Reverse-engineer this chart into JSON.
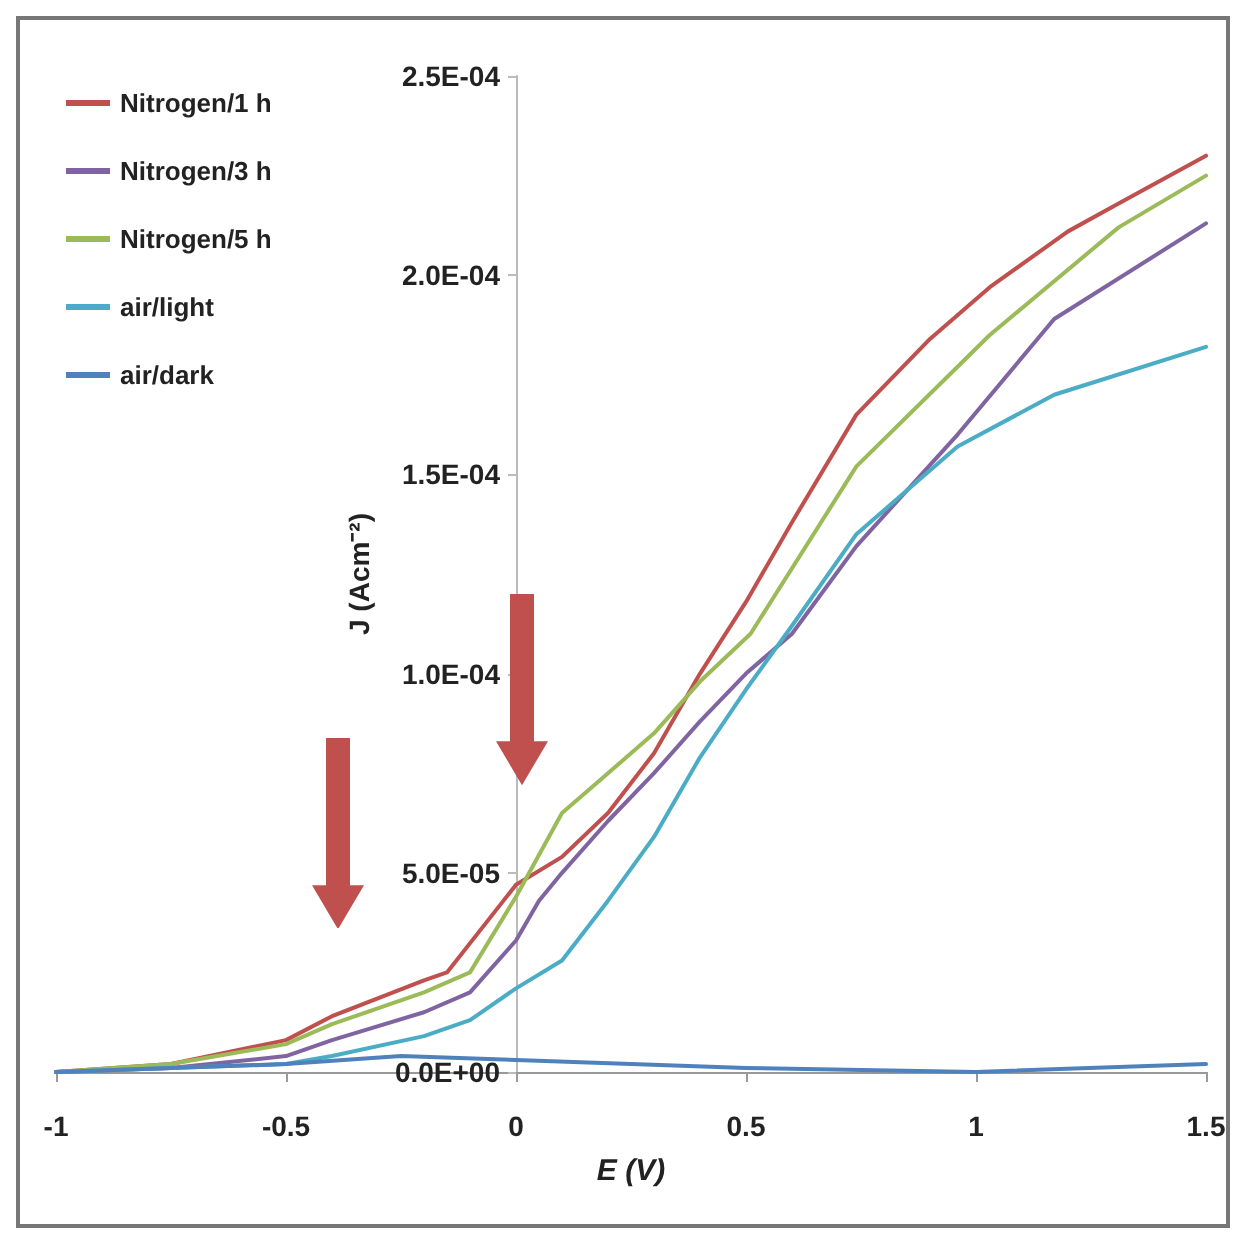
{
  "chart_data": {
    "type": "line",
    "xlabel": "E (V)",
    "ylabel": "J (Acm⁻²)",
    "xlim": [
      -1,
      1.5
    ],
    "xticks": [
      -1,
      -0.5,
      0,
      0.5,
      1,
      1.5
    ],
    "ylim": [
      0,
      0.00025
    ],
    "yticks": [
      {
        "value": 0,
        "label": "0.0E+00"
      },
      {
        "value": 5e-05,
        "label": "5.0E-05"
      },
      {
        "value": 0.0001,
        "label": "1.0E-04"
      },
      {
        "value": 0.00015,
        "label": "1.5E-04"
      },
      {
        "value": 0.0002,
        "label": "2.0E-04"
      },
      {
        "value": 0.00025,
        "label": "2.5E-04"
      }
    ],
    "grid": false,
    "legend": "top left",
    "marker": "none",
    "line_style": "solid",
    "series": [
      {
        "name": "Nitrogen/1 h",
        "color": "#c0504d",
        "x": [
          -1,
          -0.75,
          -0.5,
          -0.4,
          -0.2,
          -0.15,
          0,
          0.1,
          0.2,
          0.3,
          0.4,
          0.5,
          0.6,
          0.74,
          0.9,
          1.03,
          1.2,
          1.31,
          1.5
        ],
        "values": [
          0,
          2e-06,
          8e-06,
          1.4e-05,
          2.3e-05,
          2.5e-05,
          4.7e-05,
          5.4e-05,
          6.5e-05,
          8e-05,
          0.0001,
          0.000118,
          0.000138,
          0.000165,
          0.000184,
          0.000197,
          0.000211,
          0.000218,
          0.00023
        ]
      },
      {
        "name": "Nitrogen/3 h",
        "color": "#8064a2",
        "x": [
          -1,
          -0.75,
          -0.5,
          -0.4,
          -0.2,
          -0.1,
          0,
          0.05,
          0.1,
          0.2,
          0.3,
          0.4,
          0.5,
          0.6,
          0.74,
          0.96,
          1.17,
          1.5
        ],
        "values": [
          0,
          1e-06,
          4e-06,
          8e-06,
          1.5e-05,
          2e-05,
          3.3e-05,
          4.3e-05,
          5e-05,
          6.3e-05,
          7.5e-05,
          8.8e-05,
          0.0001,
          0.00011,
          0.000132,
          0.00016,
          0.000189,
          0.000213
        ]
      },
      {
        "name": "Nitrogen/5 h",
        "color": "#9bbb59",
        "x": [
          -1,
          -0.75,
          -0.5,
          -0.4,
          -0.2,
          -0.1,
          0,
          0.1,
          0.2,
          0.3,
          0.4,
          0.51,
          0.74,
          1.03,
          1.31,
          1.5
        ],
        "values": [
          0,
          2e-06,
          7e-06,
          1.2e-05,
          2e-05,
          2.5e-05,
          4.4e-05,
          6.5e-05,
          7.5e-05,
          8.5e-05,
          9.8e-05,
          0.00011,
          0.000152,
          0.000185,
          0.000212,
          0.000225
        ]
      },
      {
        "name": "air/light",
        "color": "#4bacc6",
        "x": [
          -1,
          -0.75,
          -0.5,
          -0.4,
          -0.2,
          -0.1,
          0,
          0.1,
          0.2,
          0.3,
          0.4,
          0.5,
          0.6,
          0.74,
          0.96,
          1.17,
          1.5
        ],
        "values": [
          0,
          1e-06,
          2e-06,
          4e-06,
          9e-06,
          1.3e-05,
          2.1e-05,
          2.8e-05,
          4.3e-05,
          5.9e-05,
          7.9e-05,
          9.6e-05,
          0.000112,
          0.000135,
          0.000157,
          0.00017,
          0.000182
        ]
      },
      {
        "name": "air/dark",
        "color": "#4f81bd",
        "x": [
          -1,
          -0.75,
          -0.5,
          -0.25,
          0,
          0.5,
          1,
          1.5
        ],
        "values": [
          0,
          1e-06,
          2e-06,
          4e-06,
          3e-06,
          1e-06,
          0,
          2e-06
        ]
      }
    ]
  }
}
